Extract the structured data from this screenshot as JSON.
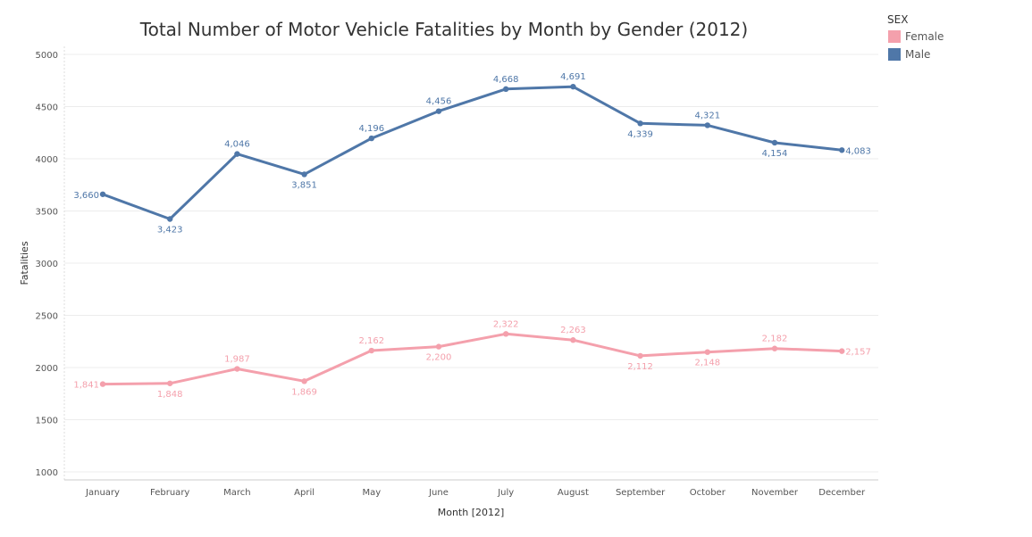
{
  "chart_data": {
    "type": "line",
    "title": "Total Number of Motor Vehicle Fatalities by Month by Gender (2012)",
    "xlabel": "Month [2012]",
    "ylabel": "Fatalities",
    "categories": [
      "January",
      "February",
      "March",
      "April",
      "May",
      "June",
      "July",
      "August",
      "September",
      "October",
      "November",
      "December"
    ],
    "ylim": [
      950,
      5050
    ],
    "yticks": [
      1000,
      1500,
      2000,
      2500,
      3000,
      3500,
      4000,
      4500,
      5000
    ],
    "grid": true,
    "legend": {
      "title": "SEX",
      "placement": "top-right",
      "entries": [
        "Female",
        "Male"
      ]
    },
    "series": [
      {
        "name": "Female",
        "color": "#F4A0AC",
        "values": [
          1841,
          1848,
          1987,
          1869,
          2162,
          2200,
          2322,
          2263,
          2112,
          2148,
          2182,
          2157
        ],
        "labels": [
          "1,841",
          "1,848",
          "1,987",
          "1,869",
          "2,162",
          "2,200",
          "2,322",
          "2,263",
          "2,112",
          "2,148",
          "2,182",
          "2,157"
        ],
        "label_positions": [
          "left",
          "below",
          "above",
          "below",
          "above",
          "below",
          "above",
          "above",
          "below",
          "below",
          "above",
          "right"
        ]
      },
      {
        "name": "Male",
        "color": "#4F77A8",
        "values": [
          3660,
          3423,
          4046,
          3851,
          4196,
          4456,
          4668,
          4691,
          4339,
          4321,
          4154,
          4083
        ],
        "labels": [
          "3,660",
          "3,423",
          "4,046",
          "3,851",
          "4,196",
          "4,456",
          "4,668",
          "4,691",
          "4,339",
          "4,321",
          "4,154",
          "4,083"
        ],
        "label_positions": [
          "left",
          "below",
          "above",
          "below",
          "above",
          "above",
          "above",
          "above",
          "below",
          "above",
          "below",
          "right"
        ]
      }
    ]
  }
}
